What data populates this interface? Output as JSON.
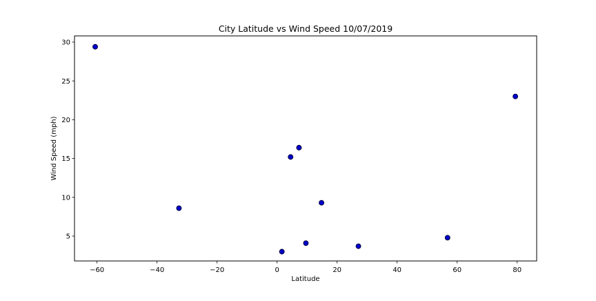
{
  "chart_data": {
    "type": "scatter",
    "title": "City Latitude vs Wind Speed 10/07/2019",
    "xlabel": "Latitude",
    "ylabel": "Wind Speed (mph)",
    "xlim": [
      -67.5,
      86.5
    ],
    "ylim": [
      1.8,
      30.8
    ],
    "xticks": [
      -60,
      -40,
      -20,
      0,
      20,
      40,
      60,
      80
    ],
    "xtick_labels": [
      "−60",
      "−40",
      "−20",
      "0",
      "20",
      "40",
      "60",
      "80"
    ],
    "yticks": [
      5,
      10,
      15,
      20,
      25,
      30
    ],
    "ytick_labels": [
      "5",
      "10",
      "15",
      "20",
      "25",
      "30"
    ],
    "grid": false,
    "marker_fill": "#0000cc",
    "marker_edge": "#000033",
    "points": [
      {
        "x": -60.6,
        "y": 29.4
      },
      {
        "x": -32.7,
        "y": 8.6
      },
      {
        "x": 1.6,
        "y": 3.0
      },
      {
        "x": 4.5,
        "y": 15.2
      },
      {
        "x": 7.3,
        "y": 16.4
      },
      {
        "x": 9.6,
        "y": 4.1
      },
      {
        "x": 14.8,
        "y": 9.3
      },
      {
        "x": 27.1,
        "y": 3.7
      },
      {
        "x": 56.8,
        "y": 4.8
      },
      {
        "x": 79.4,
        "y": 23.0
      }
    ]
  }
}
